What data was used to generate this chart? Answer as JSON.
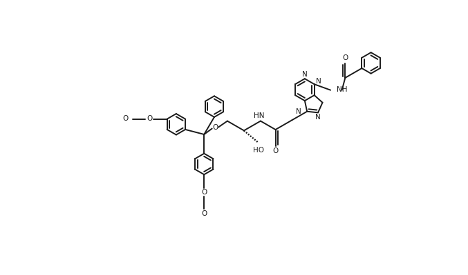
{
  "bg_color": "#ffffff",
  "line_color": "#1a1a1a",
  "text_color": "#1a1a1a",
  "line_width": 1.4,
  "figsize": [
    6.77,
    3.99
  ],
  "dpi": 100,
  "xlim": [
    0,
    10
  ],
  "ylim": [
    0,
    6
  ]
}
